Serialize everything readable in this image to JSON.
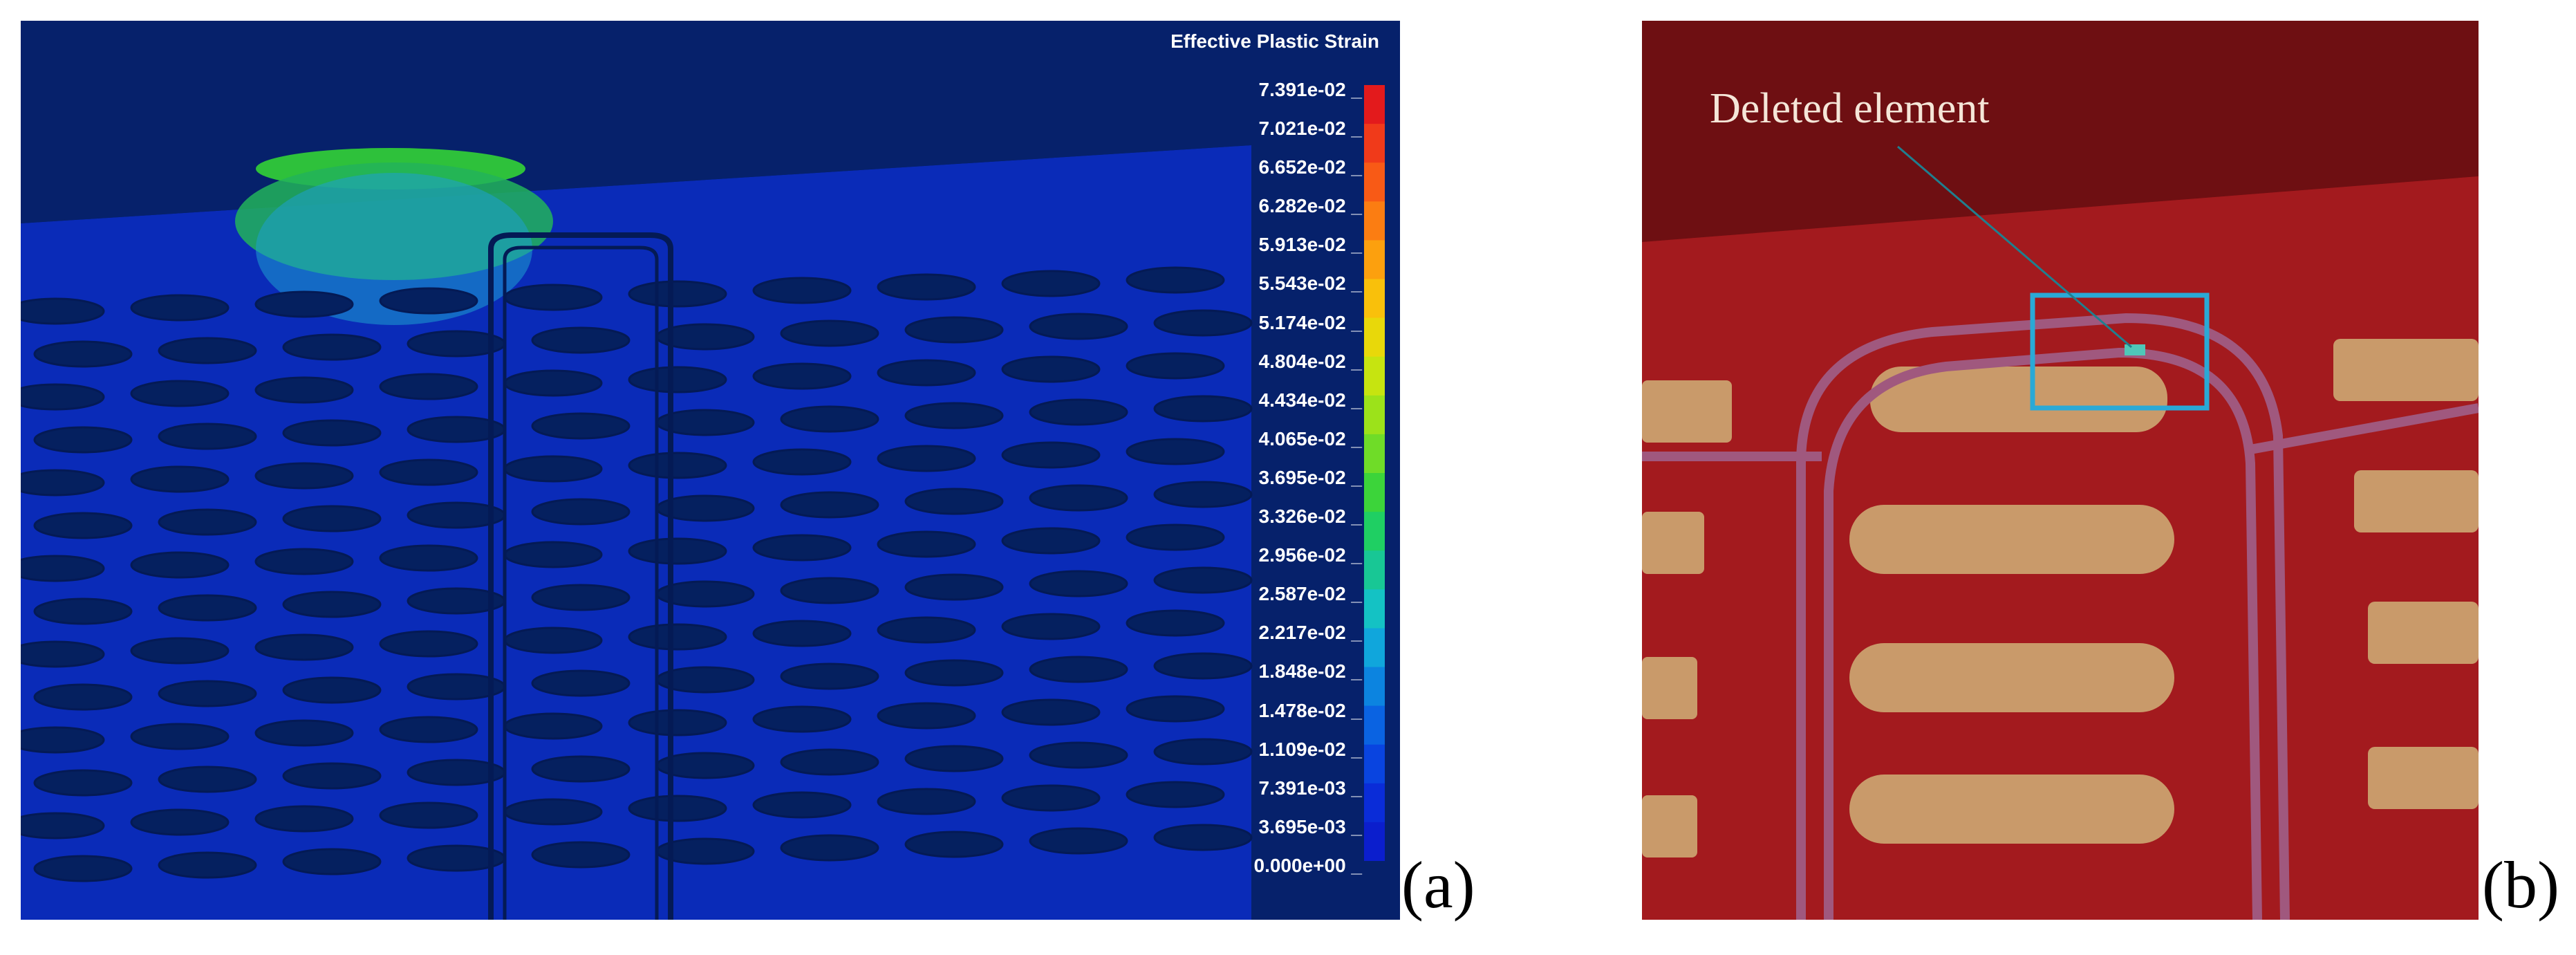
{
  "panel_a": {
    "legend": {
      "title": "Effective Plastic Strain",
      "values": [
        "7.391e-02",
        "7.021e-02",
        "6.652e-02",
        "6.282e-02",
        "5.913e-02",
        "5.543e-02",
        "5.174e-02",
        "4.804e-02",
        "4.434e-02",
        "4.065e-02",
        "3.695e-02",
        "3.326e-02",
        "2.956e-02",
        "2.587e-02",
        "2.217e-02",
        "1.848e-02",
        "1.478e-02",
        "1.109e-02",
        "7.391e-03",
        "3.695e-03",
        "0.000e+00"
      ],
      "colors": [
        "#e31a1c",
        "#f03a1a",
        "#f85a16",
        "#fb7d12",
        "#fca00e",
        "#f9c00b",
        "#e8d80a",
        "#c6e410",
        "#9ce21a",
        "#6fdc28",
        "#3cd43a",
        "#1fcf63",
        "#18c795",
        "#14c2c4",
        "#10a6dc",
        "#0c84e0",
        "#0a63e2",
        "#0944e0",
        "#0a2cd8",
        "#0b1ecd"
      ]
    },
    "label": "(a)"
  },
  "panel_b": {
    "annotation": "Deleted element",
    "label": "(b)"
  }
}
